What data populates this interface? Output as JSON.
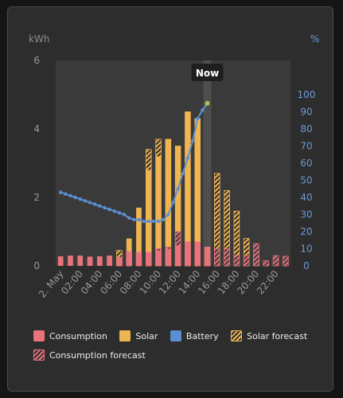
{
  "colors": {
    "consumption": "#e8737a",
    "solar": "#f0b553",
    "battery": "#5b8fd1",
    "now_marker": "#4e4e4e",
    "plot_bg": "#3a3a3a",
    "card_bg": "#2d2d2d"
  },
  "chart_data": {
    "type": "bar",
    "left_axis": {
      "unit": "kWh",
      "ticks": [
        "0",
        "2",
        "4",
        "6"
      ],
      "range": [
        0,
        6
      ]
    },
    "right_axis": {
      "unit": "%",
      "ticks": [
        "0",
        "10",
        "20",
        "30",
        "40",
        "50",
        "60",
        "70",
        "80",
        "90",
        "100"
      ],
      "range": [
        0,
        100
      ]
    },
    "x_tick_labels": [
      "2. May",
      "02:00",
      "04:00",
      "06:00",
      "08:00",
      "10:00",
      "12:00",
      "14:00",
      "16:00",
      "18:00",
      "20:00",
      "22:00"
    ],
    "hours": [
      0,
      1,
      2,
      3,
      4,
      5,
      6,
      7,
      8,
      9,
      10,
      11,
      12,
      13,
      14,
      15,
      16,
      17,
      18,
      19,
      20,
      21,
      22,
      23
    ],
    "now_label": "Now",
    "now_hour": 15,
    "series": [
      {
        "name": "Consumption",
        "values": [
          0.28,
          0.3,
          0.3,
          0.27,
          0.28,
          0.3,
          0.25,
          0.42,
          0.4,
          0.4,
          0.45,
          0.5,
          0.6,
          0.7,
          0.7,
          0.55,
          null,
          null,
          null,
          null,
          null,
          null,
          null,
          null
        ]
      },
      {
        "name": "Solar",
        "values": [
          0,
          0,
          0,
          0,
          0,
          0,
          0,
          0.8,
          1.7,
          2.8,
          3.2,
          3.7,
          3.5,
          4.5,
          4.3,
          0.5,
          null,
          null,
          null,
          null,
          null,
          null,
          null,
          null
        ]
      },
      {
        "name": "Solar forecast",
        "values": [
          null,
          null,
          null,
          null,
          null,
          null,
          0.45,
          null,
          null,
          3.4,
          3.7,
          3.7,
          3.5,
          4.5,
          4.3,
          0.1,
          2.7,
          2.2,
          1.6,
          0.8,
          0.3,
          0,
          0,
          0
        ]
      },
      {
        "name": "Consumption forecast",
        "values": [
          null,
          null,
          null,
          null,
          null,
          null,
          0.25,
          0.42,
          0.4,
          0.4,
          0.5,
          0.55,
          1.0,
          0.7,
          0.7,
          0.55,
          0.5,
          0.5,
          0.3,
          0.3,
          0.65,
          0.15,
          0.3,
          0.28
        ]
      },
      {
        "name": "Battery",
        "axis": "right",
        "x": [
          0,
          0.5,
          1,
          1.5,
          2,
          2.5,
          3,
          3.5,
          4,
          4.5,
          5,
          5.5,
          6,
          6.5,
          7,
          7.5,
          8,
          8.5,
          9,
          9.5,
          10,
          10.5,
          11,
          11.5,
          12,
          12.5,
          13,
          13.5,
          14,
          14.5,
          15
        ],
        "values": [
          43,
          42,
          41,
          40,
          39,
          38,
          37,
          36,
          35,
          34,
          33,
          32,
          31,
          30,
          28,
          27,
          27,
          26,
          26,
          26,
          26,
          27,
          30,
          37,
          45,
          54,
          63,
          73,
          86,
          91,
          95
        ]
      }
    ]
  },
  "legend": [
    {
      "key": "consumption",
      "label": "Consumption"
    },
    {
      "key": "solar",
      "label": "Solar"
    },
    {
      "key": "battery",
      "label": "Battery"
    },
    {
      "key": "solar-forecast",
      "label": "Solar forecast"
    },
    {
      "key": "consumption-forecast",
      "label": "Consumption forecast"
    }
  ]
}
